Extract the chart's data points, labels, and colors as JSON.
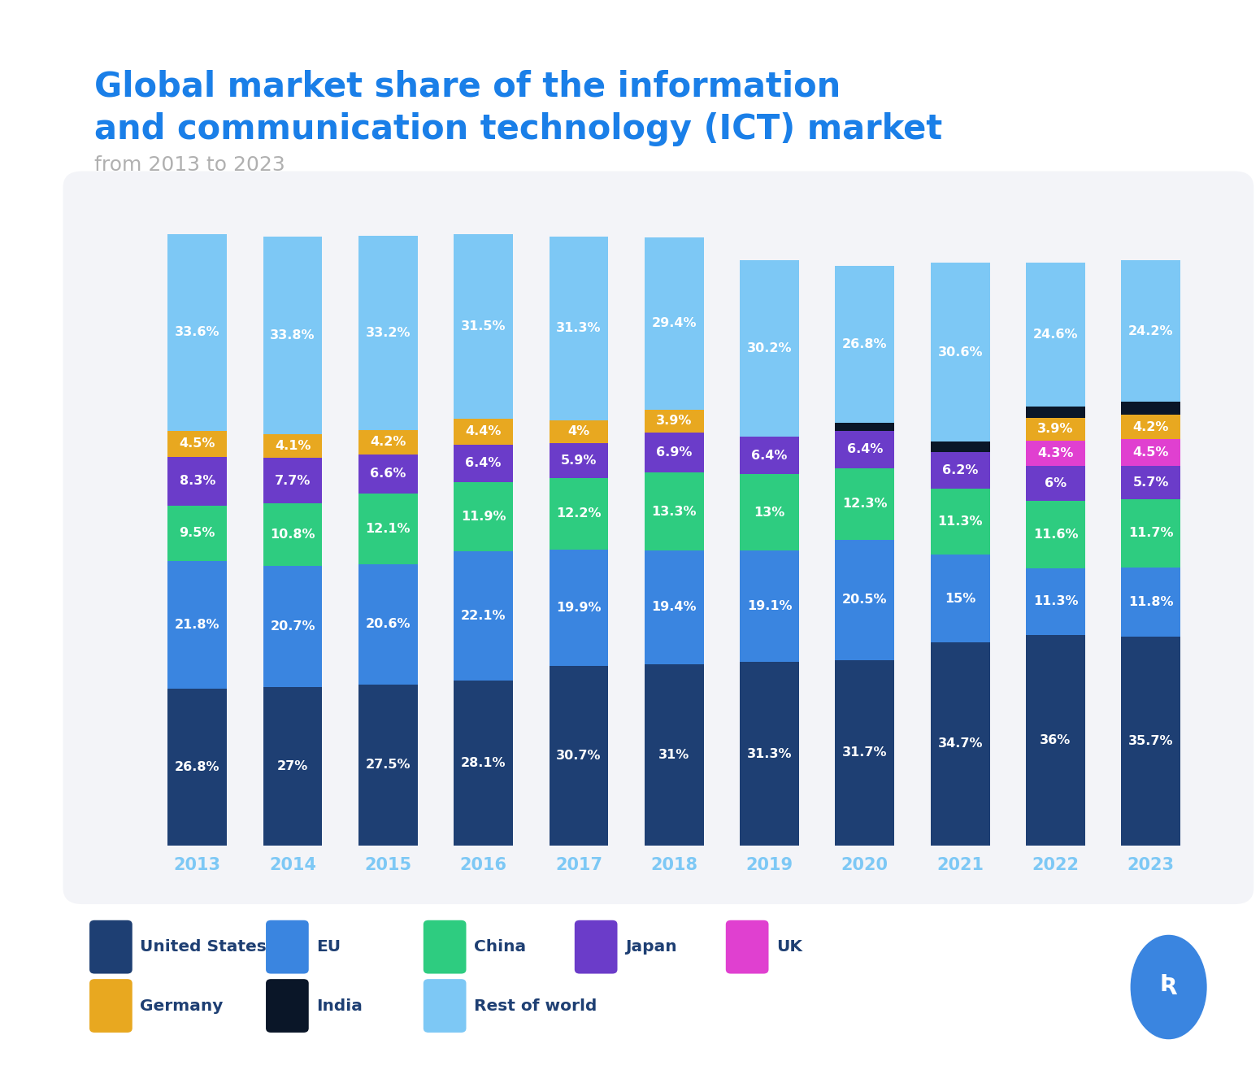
{
  "title_line1": "Global market share of the information",
  "title_line2": "and communication technology (ICT) market",
  "subtitle": "from 2013 to 2023",
  "years": [
    2013,
    2014,
    2015,
    2016,
    2017,
    2018,
    2019,
    2020,
    2021,
    2022,
    2023
  ],
  "segments": {
    "United States": [
      26.8,
      27.0,
      27.5,
      28.1,
      30.7,
      31.0,
      31.3,
      31.7,
      34.7,
      36.0,
      35.7
    ],
    "EU": [
      21.8,
      20.7,
      20.6,
      22.1,
      19.9,
      19.4,
      19.1,
      20.5,
      15.0,
      11.3,
      11.8
    ],
    "China": [
      9.5,
      10.8,
      12.1,
      11.9,
      12.2,
      13.3,
      13.0,
      12.3,
      11.3,
      11.6,
      11.7
    ],
    "Japan": [
      8.3,
      7.7,
      6.6,
      6.4,
      5.9,
      6.9,
      6.4,
      6.4,
      6.2,
      6.0,
      5.7
    ],
    "UK": [
      0.0,
      0.0,
      0.0,
      0.0,
      0.0,
      0.0,
      0.0,
      0.0,
      0.0,
      4.3,
      4.5
    ],
    "Germany": [
      4.5,
      4.1,
      4.2,
      4.4,
      4.0,
      3.9,
      0.0,
      0.0,
      0.0,
      3.9,
      4.2
    ],
    "India": [
      0.0,
      0.0,
      0.0,
      0.0,
      0.0,
      0.0,
      0.0,
      1.3,
      1.8,
      1.9,
      2.2
    ],
    "Rest of world": [
      33.6,
      33.8,
      33.2,
      31.5,
      31.3,
      29.4,
      30.2,
      26.8,
      30.6,
      24.6,
      24.2
    ]
  },
  "label_texts": {
    "United States": [
      "26.8%",
      "27%",
      "27.5%",
      "28.1%",
      "30.7%",
      "31%",
      "31.3%",
      "31.7%",
      "34.7%",
      "36%",
      "35.7%"
    ],
    "EU": [
      "21.8%",
      "20.7%",
      "20.6%",
      "22.1%",
      "19.9%",
      "19.4%",
      "19.1%",
      "20.5%",
      "15%",
      "11.3%",
      "11.8%"
    ],
    "China": [
      "9.5%",
      "10.8%",
      "12.1%",
      "11.9%",
      "12.2%",
      "13.3%",
      "13%",
      "12.3%",
      "11.3%",
      "11.6%",
      "11.7%"
    ],
    "Japan": [
      "8.3%",
      "7.7%",
      "6.6%",
      "6.4%",
      "5.9%",
      "6.9%",
      "6.4%",
      "6.4%",
      "6.2%",
      "6%",
      "5.7%"
    ],
    "UK": [
      "",
      "",
      "",
      "",
      "",
      "",
      "",
      "",
      "",
      "4.3%",
      "4.5%"
    ],
    "Germany": [
      "4.5%",
      "4.1%",
      "4.2%",
      "4.4%",
      "4%",
      "3.9%",
      "",
      "",
      "",
      "3.9%",
      "4.2%"
    ],
    "India": [
      "",
      "",
      "",
      "",
      "",
      "",
      "",
      "",
      "",
      "",
      ""
    ],
    "Rest of world": [
      "33.6%",
      "33.8%",
      "33.2%",
      "31.5%",
      "31.3%",
      "29.4%",
      "30.2%",
      "26.8%",
      "30.6%",
      "24.6%",
      "24.2%"
    ]
  },
  "colors": {
    "United States": "#1e3f73",
    "EU": "#3a85e0",
    "China": "#2ecc80",
    "Japan": "#6b3cc9",
    "UK": "#e040d0",
    "Germany": "#e8a820",
    "India": "#0a1628",
    "Rest of world": "#7dc8f5"
  },
  "segment_order": [
    "United States",
    "EU",
    "China",
    "Japan",
    "UK",
    "Germany",
    "India",
    "Rest of world"
  ],
  "title_color": "#1a7fe8",
  "subtitle_color": "#b0b0b0",
  "year_label_color": "#7dc8f5",
  "background_color": "#ffffff",
  "chart_bg_color": "#f3f4f8",
  "bar_width": 0.62,
  "legend_label_color": "#1e3f73"
}
